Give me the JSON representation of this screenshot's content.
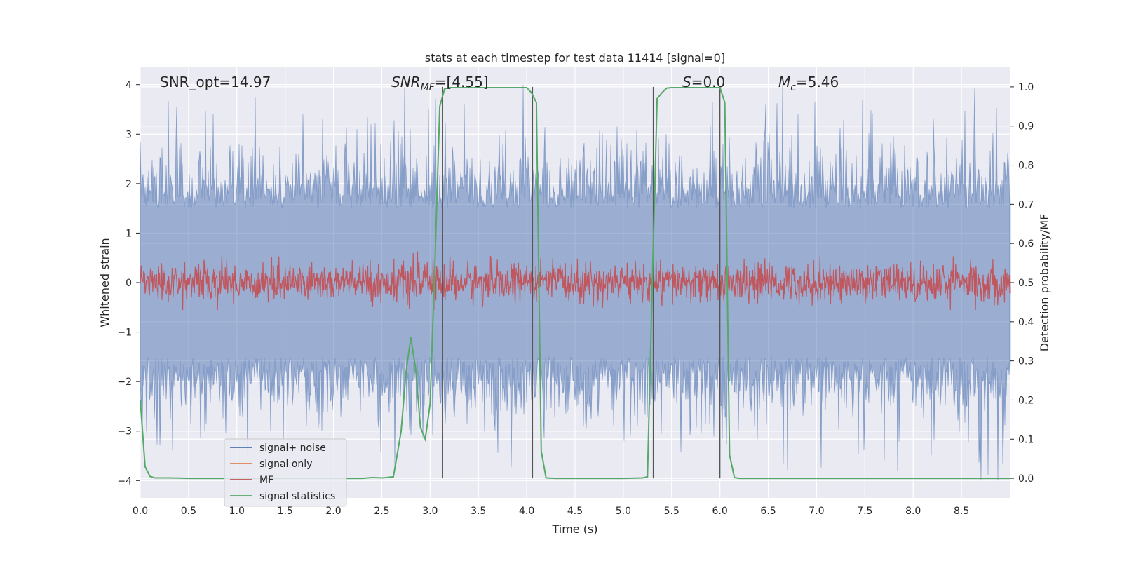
{
  "chart_data": {
    "type": "line",
    "title": "stats at each timestep for test data 11414 [signal=0]",
    "xlabel": "Time (s)",
    "ylabel": "Whitened strain",
    "y2label": "Detection probability/MF",
    "xlim": [
      0.0,
      9.0
    ],
    "ylim": [
      -4.35,
      4.35
    ],
    "y2lim": [
      -0.05,
      1.05
    ],
    "grid": true,
    "legend_position": "lower-left",
    "x_ticks": [
      "0.0",
      "0.5",
      "1.0",
      "1.5",
      "2.0",
      "2.5",
      "3.0",
      "3.5",
      "4.0",
      "4.5",
      "5.0",
      "5.5",
      "6.0",
      "6.5",
      "7.0",
      "7.5",
      "8.0",
      "8.5"
    ],
    "y_ticks": [
      "4",
      "3",
      "2",
      "1",
      "0",
      "−1",
      "−2",
      "−3",
      "−4"
    ],
    "y2_ticks": [
      "1.0",
      "0.9",
      "0.8",
      "0.7",
      "0.6",
      "0.5",
      "0.4",
      "0.3",
      "0.2",
      "0.1",
      "0.0"
    ],
    "annotations": {
      "snr_opt": "SNR_opt=14.97",
      "snr_mf_main": "SNR",
      "snr_mf_sub": "MF",
      "snr_mf_rest": "=[4.55]",
      "s_main": "S",
      "s_rest": "=0.0",
      "mc_main": "M",
      "mc_sub": "c",
      "mc_rest": "=5.46"
    },
    "vertical_lines": [
      3.13,
      4.06,
      5.31,
      6.0
    ],
    "series": [
      {
        "name": "signal+ noise",
        "color": "#4c72b0",
        "description_level": "noise band, typical amplitude ~1.5, peaks to ~3.5"
      },
      {
        "name": "signal only",
        "color": "#dd8452",
        "values": "flat zero"
      },
      {
        "name": "MF",
        "color": "#c44e52",
        "level": 0.5
      },
      {
        "name": "signal statistics",
        "color": "#55a868",
        "x": [
          0.0,
          0.05,
          0.1,
          0.15,
          0.2,
          0.3,
          0.5,
          0.8,
          1.0,
          1.5,
          2.0,
          2.3,
          2.4,
          2.5,
          2.55,
          2.62,
          2.7,
          2.75,
          2.8,
          2.85,
          2.9,
          2.95,
          3.0,
          3.05,
          3.1,
          3.15,
          3.2,
          3.3,
          3.5,
          4.0,
          4.05,
          4.1,
          4.15,
          4.2,
          4.3,
          4.5,
          5.0,
          5.2,
          5.25,
          5.3,
          5.35,
          5.4,
          5.45,
          5.5,
          5.6,
          6.0,
          6.05,
          6.1,
          6.15,
          6.2,
          6.5,
          7.0,
          7.5,
          8.0,
          8.5,
          9.0
        ],
        "y": [
          0.2,
          0.03,
          0.005,
          0.001,
          0.001,
          0.001,
          0.0,
          0.0,
          0.0,
          0.0,
          0.0,
          0.0,
          0.002,
          0.001,
          0.002,
          0.004,
          0.12,
          0.27,
          0.36,
          0.28,
          0.13,
          0.1,
          0.19,
          0.55,
          0.95,
          0.995,
          0.998,
          0.998,
          0.998,
          0.998,
          0.985,
          0.96,
          0.07,
          0.001,
          0.0,
          0.0,
          0.0,
          0.001,
          0.004,
          0.5,
          0.97,
          0.985,
          0.997,
          0.998,
          0.998,
          0.998,
          0.96,
          0.06,
          0.002,
          0.0,
          0.0,
          0.0,
          0.0,
          0.0,
          0.0,
          0.0
        ]
      }
    ]
  }
}
